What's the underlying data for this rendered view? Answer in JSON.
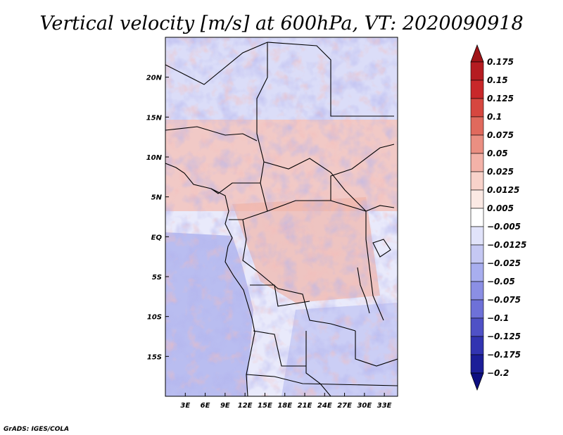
{
  "chart_data": {
    "type": "heatmap",
    "title": "Vertical velocity [m/s] at 600hPa, VT: 2020090918",
    "x_ticks": [
      "3E",
      "6E",
      "9E",
      "12E",
      "15E",
      "18E",
      "21E",
      "24E",
      "27E",
      "30E",
      "33E"
    ],
    "x_tick_values": [
      3,
      6,
      9,
      12,
      15,
      18,
      21,
      24,
      27,
      30,
      33
    ],
    "y_ticks": [
      "20N",
      "15N",
      "10N",
      "5N",
      "EQ",
      "5S",
      "10S",
      "15S"
    ],
    "y_tick_values": [
      20,
      15,
      10,
      5,
      0,
      -5,
      -10,
      -15
    ],
    "xlim": [
      0,
      35
    ],
    "ylim": [
      -20,
      25
    ],
    "units": "m/s",
    "level": "600hPa",
    "valid_time": "2020090918",
    "colorbar": {
      "levels": [
        "0.175",
        "0.15",
        "0.125",
        "0.1",
        "0.075",
        "0.05",
        "0.025",
        "0.0125",
        "0.005",
        "−0.005",
        "−0.0125",
        "−0.025",
        "−0.05",
        "−0.075",
        "−0.1",
        "−0.125",
        "−0.175",
        "−0.2"
      ],
      "colors": [
        "#a01418",
        "#b51c21",
        "#c8282a",
        "#d6473f",
        "#e06a5d",
        "#ea8f82",
        "#f3b2a8",
        "#f8d2ca",
        "#fbe9e4",
        "#ffffff",
        "#e1e3fa",
        "#c5c8f3",
        "#a8aeef",
        "#8b8fe4",
        "#6e71d8",
        "#4f51c6",
        "#3234b1",
        "#1c1e98",
        "#0e0f80"
      ]
    }
  },
  "footer": {
    "credit": "GrADS: IGES/COLA"
  }
}
